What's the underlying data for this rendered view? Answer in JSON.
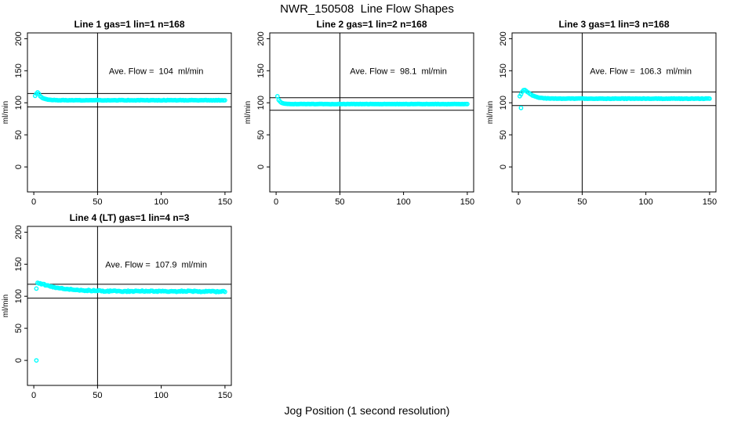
{
  "figure": {
    "title": "NWR_150508  Line Flow Shapes",
    "xlabel": "Jog Position (1 second resolution)",
    "background": "#ffffff",
    "point_color": "#00ffff",
    "axis_color": "#000000"
  },
  "chart_data": [
    {
      "type": "scatter",
      "title": "Line 1 gas=1 lin=1 n=168",
      "ylabel": "ml/min",
      "annotation": "Ave. Flow =  104  ml/min",
      "ave_flow": 104,
      "x_ticks": [
        0,
        50,
        100,
        150
      ],
      "y_ticks": [
        0,
        50,
        100,
        150,
        200
      ],
      "xlim": [
        0,
        150
      ],
      "ylim": [
        0,
        200
      ],
      "vline_x": 50,
      "hlines_y": [
        114.4,
        93.6
      ],
      "annotation_at": {
        "x": 96,
        "y": 150
      },
      "x_range": [
        1,
        150
      ],
      "noise": 0.3,
      "profile": [
        [
          1,
          111
        ],
        [
          2,
          114
        ],
        [
          3,
          116.5
        ],
        [
          4,
          114
        ],
        [
          5,
          110.5
        ],
        [
          6,
          108.5
        ],
        [
          7,
          107.3
        ],
        [
          8,
          106.4
        ],
        [
          10,
          105.3
        ],
        [
          13,
          104.6
        ],
        [
          18,
          104.1
        ],
        [
          30,
          104
        ],
        [
          150,
          104
        ]
      ],
      "outliers": []
    },
    {
      "type": "scatter",
      "title": "Line 2 gas=1 lin=2 n=168",
      "ylabel": "ml/min",
      "annotation": "Ave. Flow =  98.1  ml/min",
      "ave_flow": 98.1,
      "x_ticks": [
        0,
        50,
        100,
        150
      ],
      "y_ticks": [
        0,
        50,
        100,
        150,
        200
      ],
      "xlim": [
        0,
        150
      ],
      "ylim": [
        0,
        200
      ],
      "vline_x": 50,
      "hlines_y": [
        107.9,
        88.3
      ],
      "annotation_at": {
        "x": 96,
        "y": 150
      },
      "x_range": [
        1,
        150
      ],
      "noise": 0.25,
      "profile": [
        [
          1,
          110
        ],
        [
          2,
          104.5
        ],
        [
          3,
          102
        ],
        [
          4,
          100.5
        ],
        [
          5,
          99.5
        ],
        [
          7,
          98.7
        ],
        [
          10,
          98.2
        ],
        [
          15,
          98
        ],
        [
          150,
          98
        ]
      ],
      "outliers": []
    },
    {
      "type": "scatter",
      "title": "Line 3 gas=1 lin=3 n=168",
      "ylabel": "ml/min",
      "annotation": "Ave. Flow =  106.3  ml/min",
      "ave_flow": 106.3,
      "x_ticks": [
        0,
        50,
        100,
        150
      ],
      "y_ticks": [
        0,
        50,
        100,
        150,
        200
      ],
      "xlim": [
        0,
        150
      ],
      "ylim": [
        0,
        200
      ],
      "vline_x": 50,
      "hlines_y": [
        116.9,
        95.7
      ],
      "annotation_at": {
        "x": 96,
        "y": 150
      },
      "x_range": [
        1,
        150
      ],
      "noise": 0.35,
      "profile": [
        [
          1,
          110.5
        ],
        [
          2,
          113
        ],
        [
          3,
          117
        ],
        [
          4,
          119.5
        ],
        [
          5,
          120
        ],
        [
          6,
          118.5
        ],
        [
          7,
          117
        ],
        [
          8,
          115.5
        ],
        [
          10,
          112.5
        ],
        [
          12,
          110.5
        ],
        [
          14,
          109
        ],
        [
          17,
          107.7
        ],
        [
          20,
          107
        ],
        [
          25,
          106.6
        ],
        [
          150,
          106.4
        ]
      ],
      "outliers": [
        [
          2,
          92
        ]
      ]
    },
    {
      "type": "scatter",
      "title": "Line 4 (LT) gas=1 lin=4 n=3",
      "ylabel": "ml/min",
      "annotation": "Ave. Flow =  107.9  ml/min",
      "ave_flow": 107.9,
      "x_ticks": [
        0,
        50,
        100,
        150
      ],
      "y_ticks": [
        0,
        50,
        100,
        150,
        200
      ],
      "xlim": [
        0,
        150
      ],
      "ylim": [
        0,
        200
      ],
      "vline_x": 50,
      "hlines_y": [
        118.7,
        97.1
      ],
      "annotation_at": {
        "x": 96,
        "y": 150
      },
      "x_range": [
        3,
        150
      ],
      "noise": 0.9,
      "profile": [
        [
          3,
          121
        ],
        [
          4,
          120.5
        ],
        [
          6,
          119.5
        ],
        [
          8,
          118.3
        ],
        [
          10,
          117.2
        ],
        [
          13,
          115.5
        ],
        [
          16,
          114
        ],
        [
          20,
          112.5
        ],
        [
          24,
          111.5
        ],
        [
          28,
          110.7
        ],
        [
          33,
          110
        ],
        [
          38,
          109.4
        ],
        [
          45,
          108.8
        ],
        [
          50,
          108.4
        ],
        [
          60,
          108
        ],
        [
          75,
          107.8
        ],
        [
          90,
          108
        ],
        [
          105,
          107.6
        ],
        [
          120,
          107.8
        ],
        [
          135,
          107.4
        ],
        [
          150,
          107.6
        ]
      ],
      "outliers": [
        [
          2,
          112
        ],
        [
          2,
          0
        ]
      ]
    }
  ]
}
